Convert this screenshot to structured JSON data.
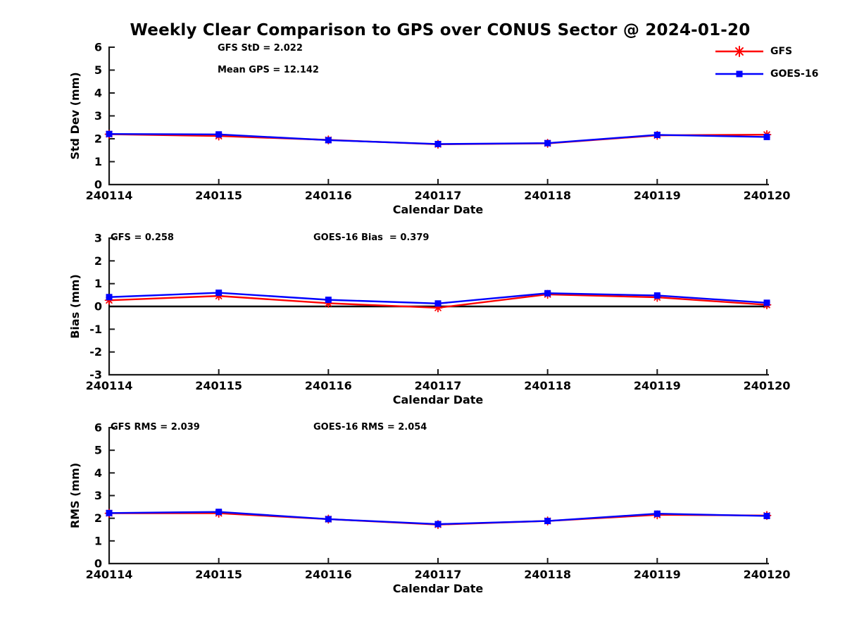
{
  "title": "Weekly Clear Comparison to GPS over CONUS Sector @ 2024-01-20",
  "legend": {
    "items": [
      {
        "label": "GFS",
        "color": "#ff0000",
        "marker": "asterisk"
      },
      {
        "label": "GOES-16",
        "color": "#0000ff",
        "marker": "square"
      }
    ]
  },
  "colors": {
    "gfs": "#ff0000",
    "goes16": "#0000ff",
    "axis": "#1a1a1a",
    "text": "#000000",
    "zero_line": "#000000"
  },
  "chart_data": [
    {
      "type": "line",
      "ylabel": "Std Dev (mm)",
      "xlabel": "Calendar Date",
      "ylim": [
        0,
        6
      ],
      "yticks": [
        0,
        1,
        2,
        3,
        4,
        5,
        6
      ],
      "categories": [
        "240114",
        "240115",
        "240116",
        "240117",
        "240118",
        "240119",
        "240120"
      ],
      "annotations": [
        "GFS StD = 2.022",
        "Mean GPS = 12.142"
      ],
      "zero_line": false,
      "grid": false,
      "legend_position": "top-right",
      "series": [
        {
          "name": "GFS",
          "color": "#ff0000",
          "marker": "asterisk",
          "values": [
            2.2,
            2.12,
            1.95,
            1.76,
            1.8,
            2.15,
            2.18
          ]
        },
        {
          "name": "GOES-16",
          "color": "#0000ff",
          "marker": "square",
          "values": [
            2.21,
            2.19,
            1.94,
            1.77,
            1.81,
            2.17,
            2.08
          ]
        }
      ]
    },
    {
      "type": "line",
      "ylabel": "Bias (mm)",
      "xlabel": "Calendar Date",
      "ylim": [
        -3,
        3
      ],
      "yticks": [
        -3,
        -2,
        -1,
        0,
        1,
        2,
        3
      ],
      "categories": [
        "240114",
        "240115",
        "240116",
        "240117",
        "240118",
        "240119",
        "240120"
      ],
      "annotations": [
        "GFS = 0.258",
        "GOES-16 Bias  = 0.379"
      ],
      "zero_line": true,
      "grid": false,
      "legend_position": "none",
      "series": [
        {
          "name": "GFS",
          "color": "#ff0000",
          "marker": "asterisk",
          "values": [
            0.27,
            0.46,
            0.14,
            -0.06,
            0.53,
            0.4,
            0.07
          ]
        },
        {
          "name": "GOES-16",
          "color": "#0000ff",
          "marker": "square",
          "values": [
            0.41,
            0.6,
            0.29,
            0.13,
            0.58,
            0.48,
            0.16
          ]
        }
      ]
    },
    {
      "type": "line",
      "ylabel": "RMS (mm)",
      "xlabel": "Calendar Date",
      "ylim": [
        0,
        6
      ],
      "yticks": [
        0,
        1,
        2,
        3,
        4,
        5,
        6
      ],
      "categories": [
        "240114",
        "240115",
        "240116",
        "240117",
        "240118",
        "240119",
        "240120"
      ],
      "annotations": [
        "GFS RMS = 2.039",
        "GOES-16 RMS = 2.054"
      ],
      "zero_line": false,
      "grid": false,
      "legend_position": "none",
      "series": [
        {
          "name": "GFS",
          "color": "#ff0000",
          "marker": "asterisk",
          "values": [
            2.22,
            2.22,
            1.96,
            1.72,
            1.88,
            2.15,
            2.12
          ]
        },
        {
          "name": "GOES-16",
          "color": "#0000ff",
          "marker": "square",
          "values": [
            2.23,
            2.28,
            1.96,
            1.74,
            1.88,
            2.2,
            2.1
          ]
        }
      ]
    }
  ]
}
